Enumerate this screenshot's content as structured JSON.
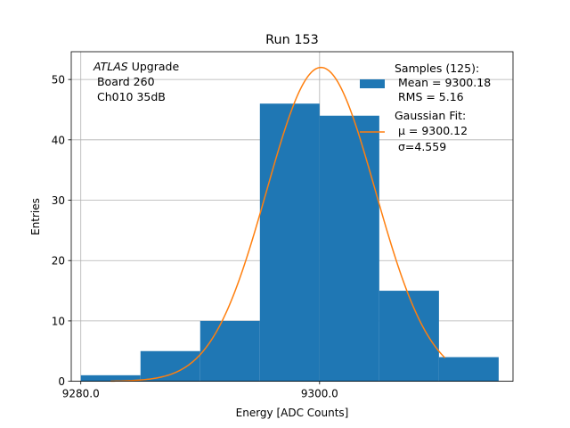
{
  "chart_data": {
    "type": "bar",
    "title": "Run 153",
    "xlabel": "Energy [ADC Counts]",
    "ylabel": "Entries",
    "xlim": [
      9279.2,
      9316.2
    ],
    "ylim": [
      0,
      54.6
    ],
    "grid": true,
    "x_tick_values": [
      9280,
      9300
    ],
    "x_tick_labels": [
      "9280.0",
      "9300.0"
    ],
    "y_ticks": [
      0,
      10,
      20,
      30,
      40,
      50
    ],
    "histogram": {
      "bin_edges": [
        9280,
        9285,
        9290,
        9295,
        9300,
        9305,
        9310,
        9315
      ],
      "counts": [
        1,
        5,
        10,
        46,
        44,
        15,
        4
      ],
      "color": "#1f77b4"
    },
    "fit": {
      "mu": 9300.12,
      "sigma": 4.559,
      "amplitude": 52,
      "x_range": [
        9282.5,
        9310.5
      ],
      "color": "#ff7f0e"
    },
    "annotation": {
      "italic": "ATLAS",
      "line1_rest": " Upgrade",
      "line2": " Board 260",
      "line3": " Ch010 35dB"
    },
    "legend": {
      "placement": "top-right",
      "entries": [
        {
          "name": "hist",
          "lines": [
            "Samples (125):",
            " Mean = 9300.18",
            " RMS = 5.16"
          ]
        },
        {
          "name": "fit",
          "lines": [
            "Gaussian Fit:",
            " μ = 9300.12",
            " σ=4.559"
          ]
        }
      ]
    }
  }
}
